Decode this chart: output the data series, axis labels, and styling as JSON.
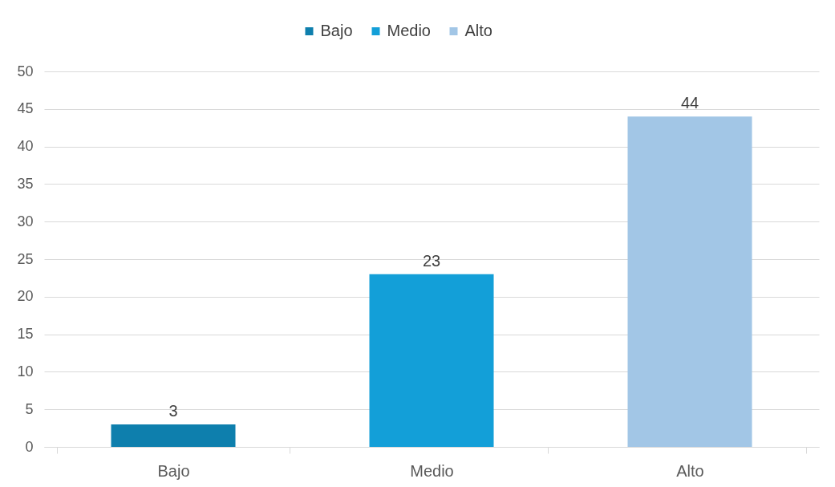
{
  "chart_data": {
    "type": "bar",
    "categories": [
      "Bajo",
      "Medio",
      "Alto"
    ],
    "series": [
      {
        "name": "Bajo",
        "color": "#0e7fad",
        "values": [
          3,
          null,
          null
        ]
      },
      {
        "name": "Medio",
        "color": "#139fd8",
        "values": [
          null,
          23,
          null
        ]
      },
      {
        "name": "Alto",
        "color": "#a2c6e6",
        "values": [
          null,
          null,
          44
        ]
      }
    ],
    "ylim": [
      0,
      50
    ],
    "yticks": [
      0,
      5,
      10,
      15,
      20,
      25,
      30,
      35,
      40,
      45,
      50
    ],
    "grid": "y",
    "legend": "top",
    "data_labels": true
  }
}
